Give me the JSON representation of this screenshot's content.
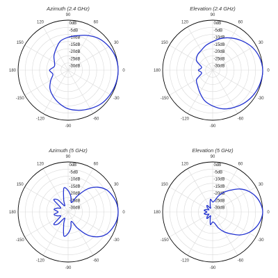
{
  "colors": {
    "trace": "#1f2fd0",
    "grid": "#d9d9d9",
    "outer": "#000000",
    "text": "#333333"
  },
  "chart_data": [
    {
      "type": "polar",
      "title": "Azimuth (2.4 GHz)",
      "angle_tick_labels": [
        "0",
        "30",
        "60",
        "90",
        "120",
        "150",
        "180",
        "-150",
        "-120",
        "-90",
        "-60",
        "-30"
      ],
      "radial_tick_labels": [
        "0dB",
        "-5dB",
        "-10dB",
        "-15dB",
        "-20dB",
        "-25dB",
        "-30dB"
      ],
      "rlim_db": [
        -35,
        0
      ],
      "grid": true,
      "series": [
        {
          "angle_deg": [
            0,
            15,
            30,
            45,
            60,
            75,
            90,
            105,
            120,
            135,
            150,
            165,
            180,
            195,
            210,
            225,
            240,
            255,
            270,
            285,
            300,
            315,
            330,
            345
          ],
          "gain_db": [
            0,
            -0.5,
            -2,
            -4,
            -7,
            -10,
            -12,
            -14,
            -18,
            -21,
            -24,
            -25,
            -22,
            -24,
            -21,
            -17,
            -14,
            -11,
            -8,
            -6,
            -4,
            -2,
            -1,
            -0.3
          ]
        }
      ]
    },
    {
      "type": "polar",
      "title": "Elevation (2.4 GHz)",
      "angle_tick_labels": [
        "0",
        "30",
        "60",
        "90",
        "120",
        "150",
        "180",
        "-150",
        "-120",
        "-90",
        "-60",
        "-30"
      ],
      "radial_tick_labels": [
        "0dB",
        "-5dB",
        "-10dB",
        "-15dB",
        "-20dB",
        "-25dB",
        "-30dB"
      ],
      "rlim_db": [
        -35,
        0
      ],
      "grid": true,
      "series": [
        {
          "angle_deg": [
            0,
            15,
            30,
            45,
            60,
            75,
            90,
            105,
            120,
            135,
            150,
            165,
            180,
            195,
            210,
            225,
            240,
            255,
            270,
            285,
            300,
            315,
            330,
            345
          ],
          "gain_db": [
            0,
            -1,
            -3,
            -6,
            -9,
            -12,
            -15,
            -17,
            -19,
            -20,
            -22,
            -27,
            -25,
            -27,
            -22,
            -20,
            -17,
            -13,
            -10,
            -7,
            -5,
            -3,
            -1.5,
            -0.5
          ]
        }
      ]
    },
    {
      "type": "polar",
      "title": "Azimuth (5 GHz)",
      "angle_tick_labels": [
        "0",
        "30",
        "60",
        "90",
        "120",
        "150",
        "180",
        "-150",
        "-120",
        "-90",
        "-60",
        "-30"
      ],
      "radial_tick_labels": [
        "0dB",
        "-5dB",
        "-10dB",
        "-15dB",
        "-20dB",
        "-25dB",
        "-30dB"
      ],
      "rlim_db": [
        -35,
        0
      ],
      "grid": true,
      "series": [
        {
          "angle_deg": [
            0,
            10,
            20,
            30,
            40,
            50,
            60,
            70,
            80,
            90,
            100,
            110,
            120,
            130,
            140,
            150,
            160,
            170,
            180,
            190,
            200,
            210,
            220,
            230,
            240,
            250,
            260,
            270,
            280,
            290,
            300,
            310,
            320,
            330,
            340,
            350
          ],
          "gain_db": [
            0,
            -0.5,
            -2,
            -4,
            -8,
            -14,
            -22,
            -28,
            -24,
            -20,
            -18,
            -26,
            -30,
            -24,
            -22,
            -29,
            -27,
            -25,
            -28,
            -25,
            -27,
            -29,
            -22,
            -24,
            -30,
            -26,
            -18,
            -20,
            -24,
            -28,
            -22,
            -14,
            -8,
            -4,
            -2,
            -0.5
          ]
        }
      ]
    },
    {
      "type": "polar",
      "title": "Elevation (5 GHz)",
      "angle_tick_labels": [
        "0",
        "30",
        "60",
        "90",
        "120",
        "150",
        "180",
        "-150",
        "-120",
        "-90",
        "-60",
        "-30"
      ],
      "radial_tick_labels": [
        "0dB",
        "-5dB",
        "-10dB",
        "-15dB",
        "-20dB",
        "-25dB",
        "-30dB"
      ],
      "rlim_db": [
        -35,
        0
      ],
      "grid": true,
      "series": [
        {
          "angle_deg": [
            0,
            10,
            20,
            30,
            40,
            50,
            60,
            70,
            80,
            90,
            100,
            110,
            120,
            130,
            140,
            150,
            160,
            170,
            180,
            190,
            200,
            210,
            220,
            230,
            240,
            250,
            260,
            270,
            280,
            290,
            300,
            310,
            320,
            330,
            340,
            350
          ],
          "gain_db": [
            0,
            -1,
            -3,
            -6,
            -10,
            -15,
            -19,
            -23,
            -27,
            -28,
            -26,
            -30,
            -32,
            -29,
            -30,
            -32,
            -30,
            -29,
            -31,
            -29,
            -30,
            -32,
            -30,
            -29,
            -32,
            -30,
            -26,
            -28,
            -27,
            -23,
            -19,
            -15,
            -10,
            -6,
            -3,
            -1
          ]
        }
      ]
    }
  ]
}
